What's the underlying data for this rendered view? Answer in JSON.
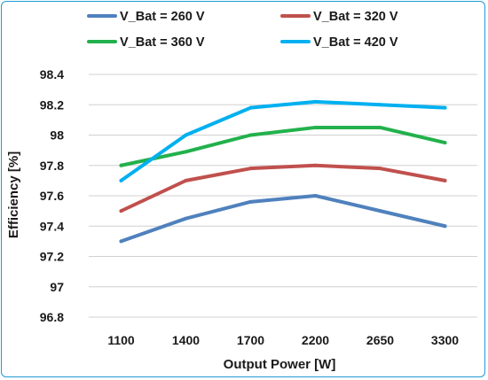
{
  "chart_data": {
    "type": "line",
    "categories": [
      "1100",
      "1400",
      "1700",
      "2200",
      "2650",
      "3300"
    ],
    "xlabel": "Output Power [W]",
    "ylabel": "Efficiency [%]",
    "ylim": [
      96.8,
      98.4
    ],
    "yticks": [
      "96.8",
      "97",
      "97.2",
      "97.4",
      "97.6",
      "97.8",
      "98",
      "98.2",
      "98.4"
    ],
    "grid": "horizontal",
    "legend": "top",
    "series": [
      {
        "name": "V_Bat = 260 V",
        "color": "#4f81bd",
        "values": [
          97.3,
          97.45,
          97.56,
          97.6,
          97.5,
          97.4
        ]
      },
      {
        "name": "V_Bat = 320 V",
        "color": "#c0504d",
        "values": [
          97.5,
          97.7,
          97.78,
          97.8,
          97.78,
          97.7
        ]
      },
      {
        "name": "V_Bat = 360 V",
        "color": "#22b14c",
        "values": [
          97.8,
          97.89,
          98.0,
          98.05,
          98.05,
          97.95
        ]
      },
      {
        "name": "V_Bat = 420 V",
        "color": "#00b0f0",
        "values": [
          97.7,
          98.0,
          98.18,
          98.22,
          98.2,
          98.18
        ]
      }
    ]
  }
}
